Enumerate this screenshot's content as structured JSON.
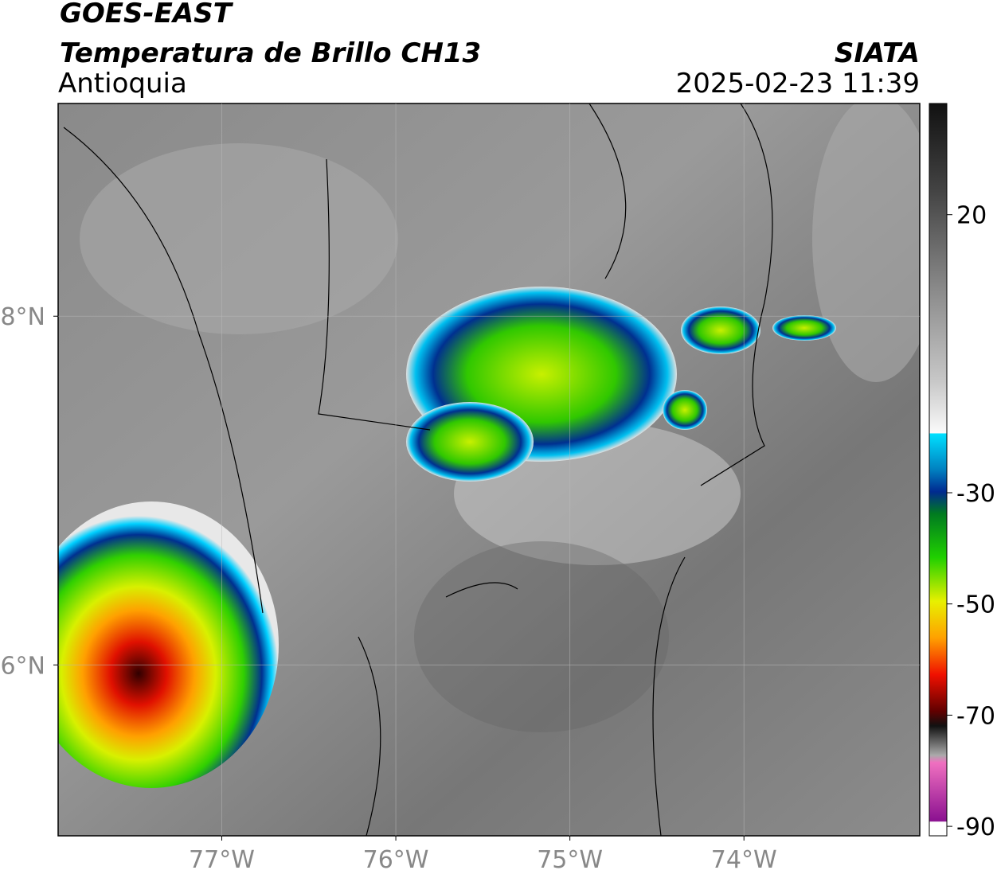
{
  "header": {
    "title": "GOES-EAST",
    "subtitle": "Temperatura de Brillo CH13",
    "region": "Antioquia",
    "source": "SIATA",
    "timestamp": "2025-02-23 11:39"
  },
  "map": {
    "xlim": [
      -77.94,
      -72.99
    ],
    "ylim": [
      5.02,
      9.22
    ],
    "xticks": [
      {
        "value": -77,
        "label": "77°W"
      },
      {
        "value": -76,
        "label": "76°W"
      },
      {
        "value": -75,
        "label": "75°W"
      },
      {
        "value": -74,
        "label": "74°W"
      }
    ],
    "yticks": [
      {
        "value": 8,
        "label": "8°N"
      },
      {
        "value": 6,
        "label": "6°N"
      }
    ],
    "grid": true
  },
  "colorbar": {
    "clim": [
      -91.7,
      40
    ],
    "ticks": [
      20,
      -30,
      -50,
      -70,
      -90
    ]
  }
}
